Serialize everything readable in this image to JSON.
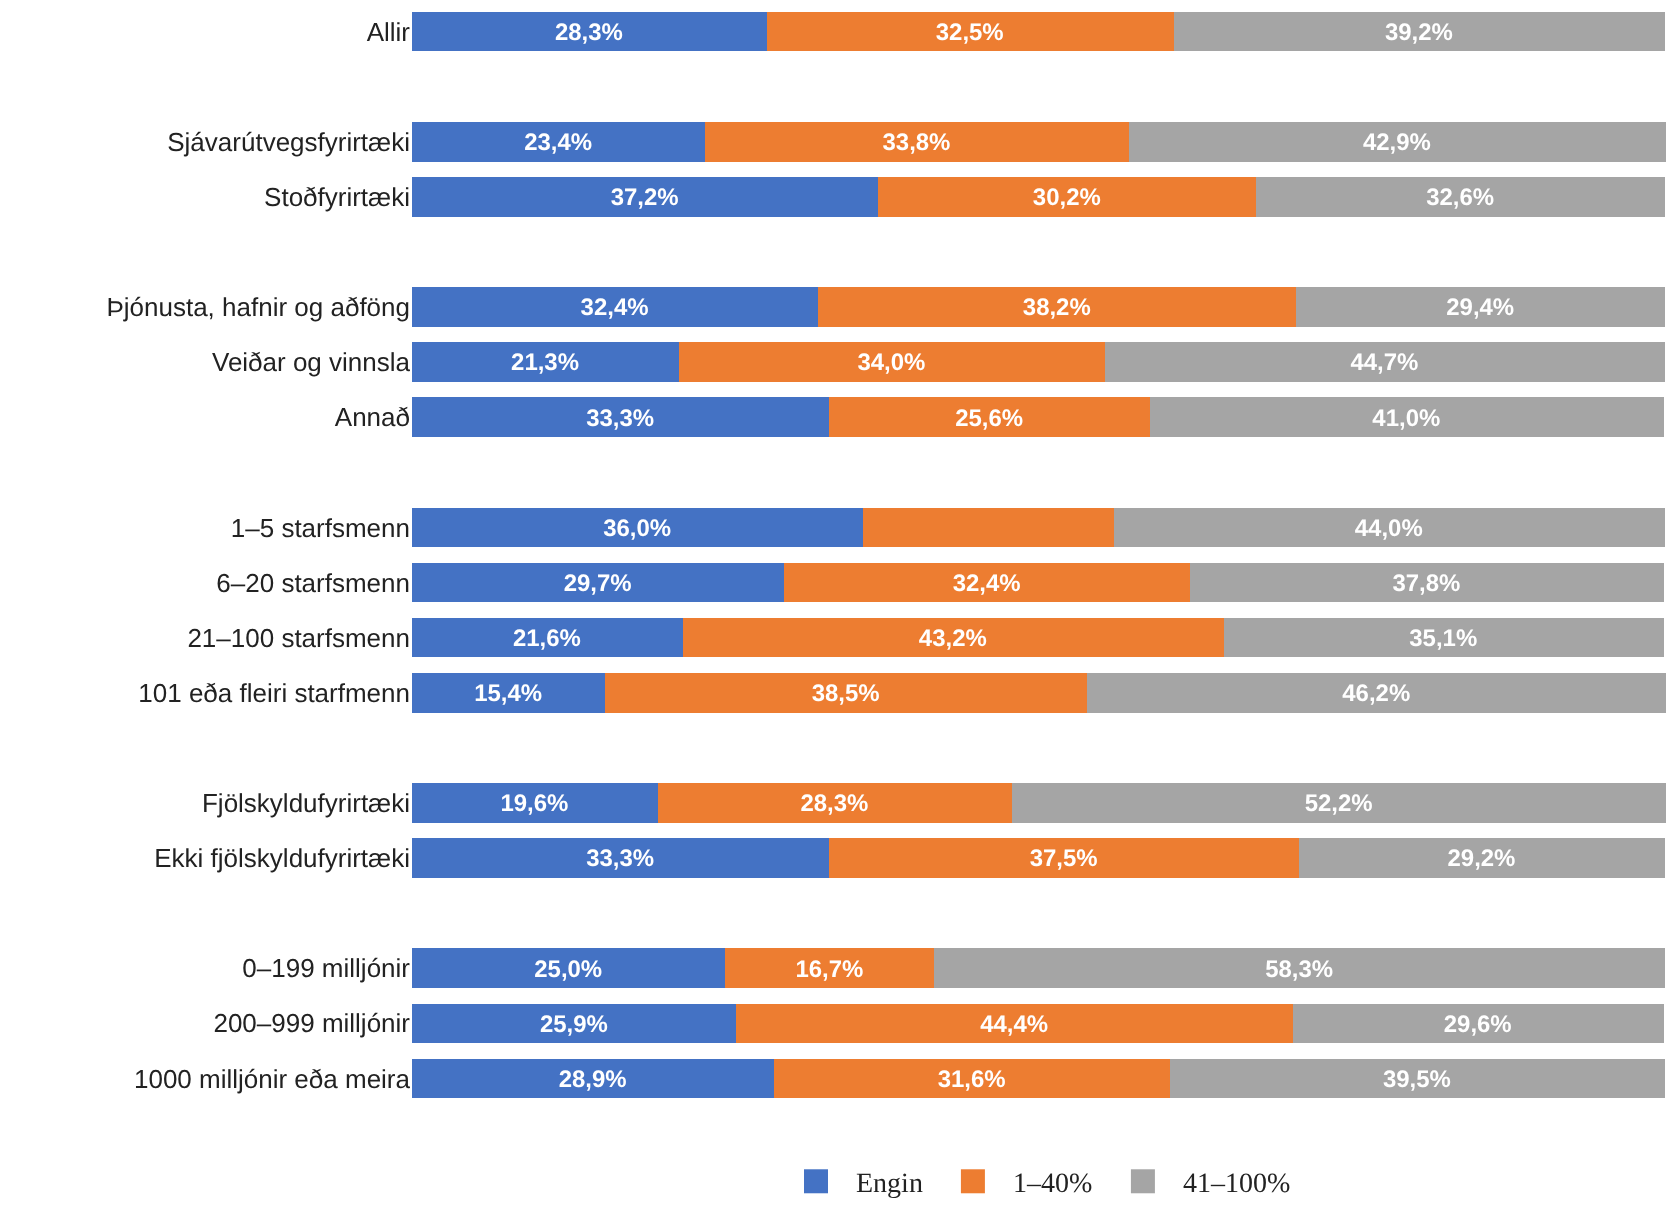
{
  "chart_data": {
    "type": "bar",
    "orientation": "horizontal",
    "stacked": true,
    "legend": "bottom",
    "grid": false,
    "categories": [
      "Allir",
      null,
      "Sjávarútvegsfyrirtæki",
      "Stoðfyrirtæki",
      null,
      "Þjónusta, hafnir og aðföng",
      "Veiðar og vinnsla",
      "Annað",
      null,
      "1–5 starfsmenn",
      "6–20 starfsmenn",
      "21–100 starfsmenn",
      "101 eða fleiri starfmenn",
      null,
      "Fjölskyldufyrirtæki",
      "Ekki fjölskyldufyrirtæki",
      null,
      "0–199 milljónir",
      "200–999 milljónir",
      "1000 milljónir eða meira"
    ],
    "series": [
      {
        "name": "Engin",
        "color": "#4472c4",
        "values": [
          28.3,
          null,
          23.4,
          37.2,
          null,
          32.4,
          21.3,
          33.3,
          null,
          36.0,
          29.7,
          21.6,
          15.4,
          null,
          19.6,
          33.3,
          null,
          25.0,
          25.9,
          28.9
        ],
        "value_labels": [
          "28,3%",
          null,
          "23,4%",
          "37,2%",
          null,
          "32,4%",
          "21,3%",
          "33,3%",
          null,
          "36,0%",
          "29,7%",
          "21,6%",
          "15,4%",
          null,
          "19,6%",
          "33,3%",
          null,
          "25,0%",
          "25,9%",
          "28,9%"
        ]
      },
      {
        "name": "1–40%",
        "color": "#ed7d31",
        "values": [
          32.5,
          null,
          33.8,
          30.2,
          null,
          38.2,
          34.0,
          25.6,
          null,
          20.0,
          32.4,
          43.2,
          38.5,
          null,
          28.3,
          37.5,
          null,
          16.7,
          44.4,
          31.6
        ],
        "value_labels": [
          "32,5%",
          null,
          "33,8%",
          "30,2%",
          null,
          "38,2%",
          "34,0%",
          "25,6%",
          null,
          null,
          "32,4%",
          "43,2%",
          "38,5%",
          null,
          "28,3%",
          "37,5%",
          null,
          "16,7%",
          "44,4%",
          "31,6%"
        ]
      },
      {
        "name": "41–100%",
        "color": "#a5a5a5",
        "values": [
          39.2,
          null,
          42.9,
          32.6,
          null,
          29.4,
          44.7,
          41.0,
          null,
          44.0,
          37.8,
          35.1,
          46.2,
          null,
          52.2,
          29.2,
          null,
          58.3,
          29.6,
          39.5
        ],
        "value_labels": [
          "39,2%",
          null,
          "42,9%",
          "32,6%",
          null,
          "29,4%",
          "44,7%",
          "41,0%",
          null,
          "44,0%",
          "37,8%",
          "35,1%",
          "46,2%",
          null,
          "52,2%",
          "29,2%",
          null,
          "58,3%",
          "29,6%",
          "39,5%"
        ]
      }
    ]
  }
}
